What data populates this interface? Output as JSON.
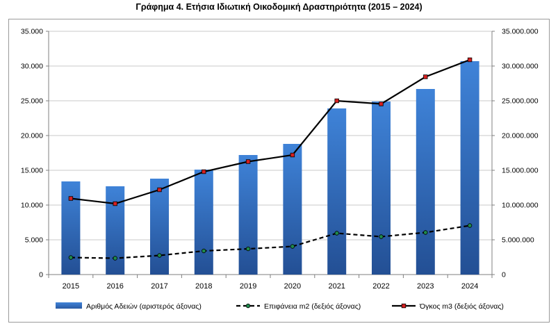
{
  "title": "Γράφημα 4. Ετήσια Ιδιωτική Οικοδομική Δραστηριότητα (2015 – 2024)",
  "chart_data": {
    "type": "bar",
    "categories": [
      "2015",
      "2016",
      "2017",
      "2018",
      "2019",
      "2020",
      "2021",
      "2022",
      "2023",
      "2024"
    ],
    "series": [
      {
        "name": "Αριθμός Αδειών (αριστερός άξονας)",
        "type": "bar",
        "axis": "left",
        "color": "#2e6bbd",
        "values": [
          13400,
          12700,
          13800,
          15100,
          17200,
          18800,
          23900,
          24900,
          26700,
          30700
        ]
      },
      {
        "name": "Επιφάνεια m2 (δεξιός άξονας)",
        "type": "line",
        "style": "dashed",
        "axis": "right",
        "color": "#000000",
        "marker_color": "#1f8a4c",
        "values": [
          2450000,
          2350000,
          2750000,
          3400000,
          3700000,
          4050000,
          5950000,
          5450000,
          6050000,
          7050000
        ]
      },
      {
        "name": "Όγκος m3 (δεξιός άξονας)",
        "type": "line",
        "style": "solid",
        "axis": "right",
        "color": "#000000",
        "marker_color": "#d62020",
        "values": [
          10950000,
          10200000,
          12200000,
          14800000,
          16250000,
          17200000,
          25000000,
          24550000,
          28450000,
          30900000
        ]
      }
    ],
    "y_left": {
      "ylim": [
        0,
        35000
      ],
      "ticks": [
        "0",
        "5.000",
        "10.000",
        "15.000",
        "20.000",
        "25.000",
        "30.000",
        "35.000"
      ]
    },
    "y_right": {
      "ylim": [
        0,
        35000000
      ],
      "ticks": [
        "0",
        "5.000.000",
        "10.000.000",
        "15.000.000",
        "20.000.000",
        "25.000.000",
        "30.000.000",
        "35.000.000"
      ]
    },
    "grid": true,
    "legend_position": "bottom"
  }
}
